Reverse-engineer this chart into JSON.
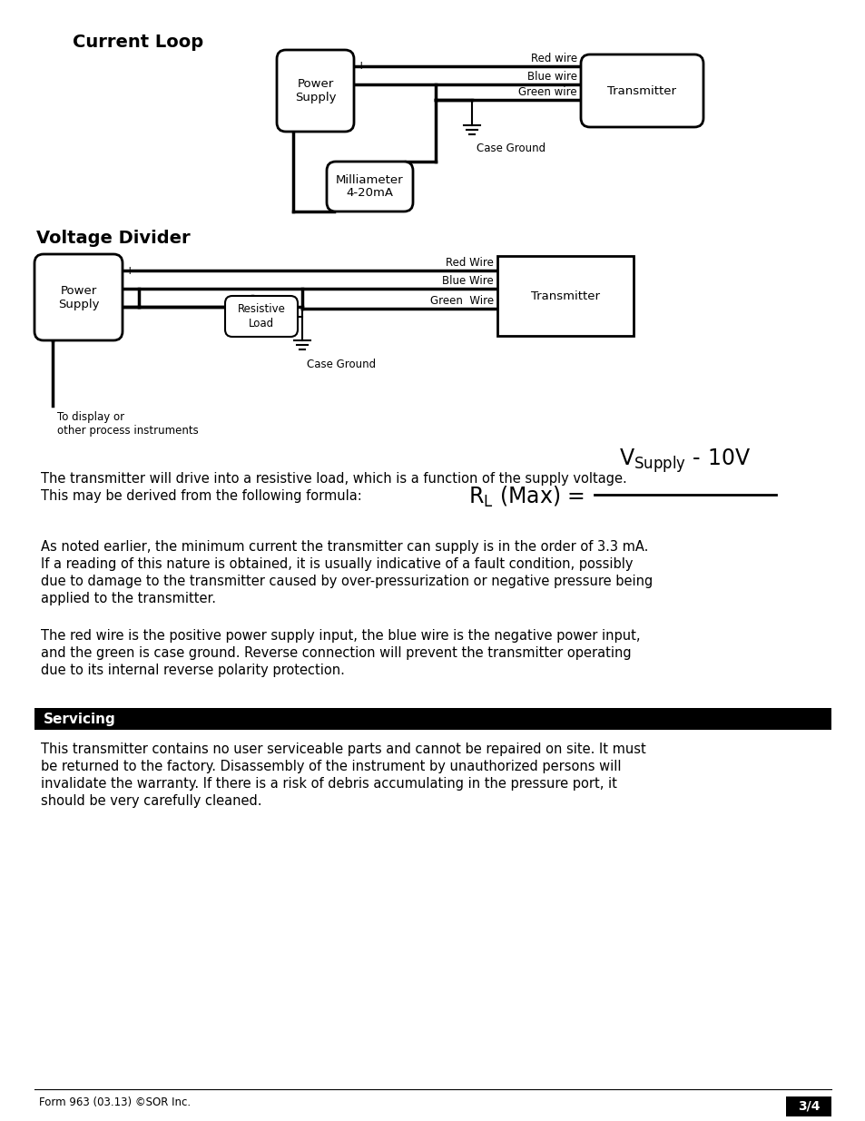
{
  "bg_color": "#ffffff",
  "current_loop_label": "Current Loop",
  "voltage_divider_label": "Voltage Divider",
  "servicing_label": "Servicing",
  "para1_line1": "The transmitter will drive into a resistive load, which is a function of the supply voltage.",
  "para1_line2": "This may be derived from the following formula:",
  "para2_line1": "As noted earlier, the minimum current the transmitter can supply is in the order of 3.3 mA.",
  "para2_line2": "If a reading of this nature is obtained, it is usually indicative of a fault condition, possibly",
  "para2_line3": "due to damage to the transmitter caused by over-pressurization or negative pressure being",
  "para2_line4": "applied to the transmitter.",
  "para3_line1": "The red wire is the positive power supply input, the blue wire is the negative power input,",
  "para3_line2": "and the green is case ground. Reverse connection will prevent the transmitter operating",
  "para3_line3": "due to its internal reverse polarity protection.",
  "serv_para_lines": [
    "This transmitter contains no user serviceable parts and cannot be repaired on site. It must",
    "be returned to the factory. Disassembly of the instrument by unauthorized persons will",
    "invalidate the warranty. If there is a risk of debris accumulating in the pressure port, it",
    "should be very carefully cleaned."
  ],
  "footer_left": "Form 963 (03.13) ©SOR Inc.",
  "footer_right": "3/4"
}
